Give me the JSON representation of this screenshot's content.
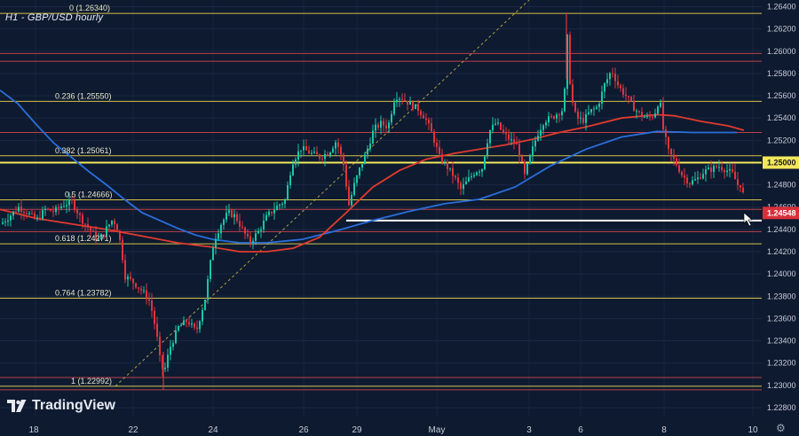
{
  "header": {
    "title": "H1 - GBP/USD hourly"
  },
  "brand": {
    "name": "TradingView"
  },
  "colors": {
    "background": "#0d1a30",
    "bull": "#18c7a5",
    "bear": "#e0343c",
    "ma_blue": "#2a6fdb",
    "ma_red": "#e23a2e",
    "fib_line": "#d6c24a",
    "key_level": "#f2e85a",
    "support": "#ffffff",
    "resistance": "#c0404a"
  },
  "chart_data": {
    "type": "candlestick",
    "title": "H1 - GBP/USD hourly",
    "ylim": [
      1.2272,
      1.2646
    ],
    "price_ticks": [
      "1.26400",
      "1.26200",
      "1.26000",
      "1.25800",
      "1.25600",
      "1.25400",
      "1.25200",
      "1.25000",
      "1.24800",
      "1.24600",
      "1.24400",
      "1.24200",
      "1.24000",
      "1.23800",
      "1.23600",
      "1.23400",
      "1.23200",
      "1.23000",
      "1.22800"
    ],
    "time_ticks": [
      "18",
      "22",
      "24",
      "26",
      "29",
      "May",
      "3",
      "6",
      "8",
      "10"
    ],
    "fibonacci": [
      {
        "label": "0 (1.26340)",
        "price": 1.2634
      },
      {
        "label": "0.236 (1.25550)",
        "price": 1.2555
      },
      {
        "label": "0.382 (1.25061)",
        "price": 1.25061
      },
      {
        "label": "0.5 (1.24666)",
        "price": 1.24666
      },
      {
        "label": "0.618 (1.24271)",
        "price": 1.24271
      },
      {
        "label": "0.764 (1.23782)",
        "price": 1.23782
      },
      {
        "label": "1 (1.22992)",
        "price": 1.22992
      }
    ],
    "key_level": {
      "label": "1.25000",
      "price": 1.25
    },
    "current_price": {
      "label": "1.24548",
      "price": 1.24548
    },
    "support_level": 1.2448,
    "red_levels": [
      1.2598,
      1.2591,
      1.2527,
      1.2458,
      1.2438,
      1.2307,
      1.2296
    ],
    "ma_100": [
      [
        0,
        1.2565
      ],
      [
        20,
        1.2553
      ],
      [
        40,
        1.2535
      ],
      [
        60,
        1.2518
      ],
      [
        80,
        1.2505
      ],
      [
        100,
        1.2492
      ],
      [
        120,
        1.248
      ],
      [
        140,
        1.2467
      ],
      [
        160,
        1.2455
      ],
      [
        180,
        1.2448
      ],
      [
        200,
        1.2441
      ],
      [
        220,
        1.2435
      ],
      [
        240,
        1.2431
      ],
      [
        270,
        1.2428
      ],
      [
        300,
        1.2428
      ],
      [
        340,
        1.2431
      ],
      [
        380,
        1.2439
      ],
      [
        420,
        1.2448
      ],
      [
        460,
        1.2456
      ],
      [
        500,
        1.2463
      ],
      [
        540,
        1.2467
      ],
      [
        580,
        1.2478
      ],
      [
        620,
        1.2497
      ],
      [
        660,
        1.2512
      ],
      [
        700,
        1.2523
      ],
      [
        740,
        1.2528
      ],
      [
        780,
        1.2527
      ],
      [
        830,
        1.2527
      ]
    ],
    "ma_200": [
      [
        0,
        1.2458
      ],
      [
        40,
        1.245
      ],
      [
        80,
        1.2445
      ],
      [
        120,
        1.244
      ],
      [
        160,
        1.2434
      ],
      [
        200,
        1.2428
      ],
      [
        240,
        1.2424
      ],
      [
        270,
        1.242
      ],
      [
        300,
        1.242
      ],
      [
        330,
        1.2423
      ],
      [
        360,
        1.2433
      ],
      [
        390,
        1.2455
      ],
      [
        420,
        1.2478
      ],
      [
        450,
        1.2493
      ],
      [
        480,
        1.2503
      ],
      [
        510,
        1.2508
      ],
      [
        540,
        1.2512
      ],
      [
        570,
        1.2516
      ],
      [
        600,
        1.2521
      ],
      [
        630,
        1.2527
      ],
      [
        660,
        1.2532
      ],
      [
        700,
        1.254
      ],
      [
        740,
        1.2543
      ],
      [
        760,
        1.2542
      ],
      [
        790,
        1.2537
      ],
      [
        820,
        1.2533
      ],
      [
        838,
        1.2529
      ]
    ],
    "price_path": [
      [
        0,
        1.2445
      ],
      [
        10,
        1.2452
      ],
      [
        20,
        1.246
      ],
      [
        30,
        1.2455
      ],
      [
        40,
        1.2448
      ],
      [
        50,
        1.2458
      ],
      [
        60,
        1.2456
      ],
      [
        70,
        1.2462
      ],
      [
        80,
        1.2465
      ],
      [
        90,
        1.245
      ],
      [
        100,
        1.244
      ],
      [
        110,
        1.243
      ],
      [
        115,
        1.2436
      ],
      [
        120,
        1.2442
      ],
      [
        125,
        1.2448
      ],
      [
        130,
        1.2445
      ],
      [
        135,
        1.2426
      ],
      [
        140,
        1.2398
      ],
      [
        150,
        1.2392
      ],
      [
        160,
        1.2384
      ],
      [
        168,
        1.2375
      ],
      [
        175,
        1.2348
      ],
      [
        180,
        1.2318
      ],
      [
        184,
        1.2312
      ],
      [
        190,
        1.2333
      ],
      [
        200,
        1.2352
      ],
      [
        210,
        1.2358
      ],
      [
        220,
        1.2348
      ],
      [
        230,
        1.2378
      ],
      [
        236,
        1.241
      ],
      [
        240,
        1.243
      ],
      [
        248,
        1.2445
      ],
      [
        256,
        1.2455
      ],
      [
        264,
        1.2452
      ],
      [
        272,
        1.244
      ],
      [
        280,
        1.2428
      ],
      [
        290,
        1.2438
      ],
      [
        300,
        1.2452
      ],
      [
        310,
        1.246
      ],
      [
        320,
        1.2466
      ],
      [
        328,
        1.25
      ],
      [
        338,
        1.2513
      ],
      [
        350,
        1.2508
      ],
      [
        360,
        1.2505
      ],
      [
        370,
        1.251
      ],
      [
        378,
        1.252
      ],
      [
        386,
        1.2498
      ],
      [
        392,
        1.2462
      ],
      [
        398,
        1.248
      ],
      [
        404,
        1.2494
      ],
      [
        412,
        1.251
      ],
      [
        420,
        1.253
      ],
      [
        428,
        1.2535
      ],
      [
        436,
        1.2532
      ],
      [
        444,
        1.256
      ],
      [
        452,
        1.2558
      ],
      [
        460,
        1.2553
      ],
      [
        470,
        1.2548
      ],
      [
        478,
        1.254
      ],
      [
        486,
        1.2525
      ],
      [
        494,
        1.2505
      ],
      [
        502,
        1.2497
      ],
      [
        510,
        1.2488
      ],
      [
        518,
        1.2476
      ],
      [
        526,
        1.2484
      ],
      [
        534,
        1.2492
      ],
      [
        542,
        1.2495
      ],
      [
        550,
        1.2528
      ],
      [
        558,
        1.2536
      ],
      [
        566,
        1.2526
      ],
      [
        574,
        1.252
      ],
      [
        582,
        1.2515
      ],
      [
        590,
        1.2488
      ],
      [
        596,
        1.2505
      ],
      [
        604,
        1.2525
      ],
      [
        612,
        1.2538
      ],
      [
        620,
        1.254
      ],
      [
        628,
        1.2545
      ],
      [
        634,
        1.2548
      ],
      [
        638,
        1.2612
      ],
      [
        642,
        1.256
      ],
      [
        648,
        1.254
      ],
      [
        656,
        1.2538
      ],
      [
        664,
        1.2546
      ],
      [
        672,
        1.255
      ],
      [
        680,
        1.257
      ],
      [
        688,
        1.2583
      ],
      [
        696,
        1.2568
      ],
      [
        704,
        1.256
      ],
      [
        712,
        1.255
      ],
      [
        720,
        1.2543
      ],
      [
        728,
        1.254
      ],
      [
        736,
        1.2543
      ],
      [
        742,
        1.2558
      ],
      [
        746,
        1.253
      ],
      [
        752,
        1.251
      ],
      [
        760,
        1.25
      ],
      [
        768,
        1.2488
      ],
      [
        776,
        1.2482
      ],
      [
        784,
        1.2485
      ],
      [
        792,
        1.2492
      ],
      [
        800,
        1.2494
      ],
      [
        808,
        1.2497
      ],
      [
        816,
        1.2494
      ],
      [
        824,
        1.249
      ],
      [
        830,
        1.248
      ],
      [
        835,
        1.248
      ],
      [
        838,
        1.2455
      ]
    ]
  }
}
